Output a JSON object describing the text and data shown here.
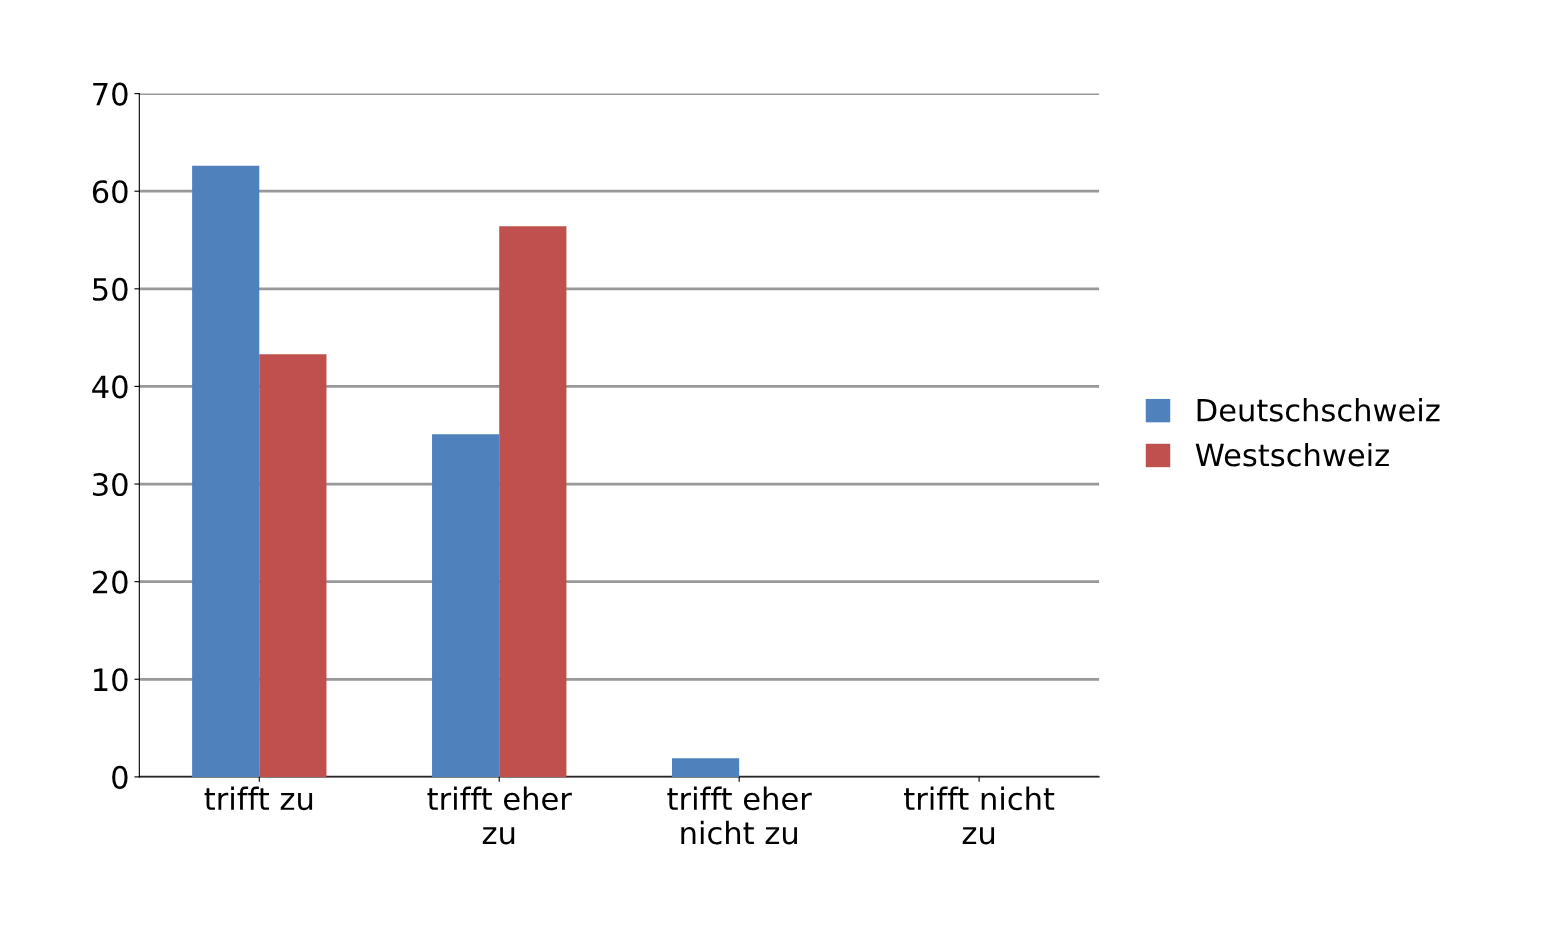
{
  "chart_data": {
    "type": "bar",
    "categories": [
      "trifft zu",
      "trifft eher\nzu",
      "trifft eher\nnicht zu",
      "trifft nicht\nzu"
    ],
    "series": [
      {
        "name": "Deutschschweiz",
        "color": "#4f81bd",
        "values": [
          62.6,
          35.1,
          1.9,
          0
        ]
      },
      {
        "name": "Westschweiz",
        "color": "#c0504d",
        "values": [
          43.3,
          56.4,
          0,
          0
        ]
      }
    ],
    "ylim": [
      0,
      70
    ],
    "yticks": [
      0,
      10,
      20,
      30,
      40,
      50,
      60,
      70
    ],
    "grid": "y",
    "legend": "right"
  }
}
